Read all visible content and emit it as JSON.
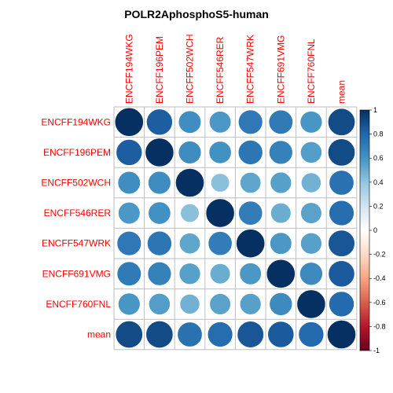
{
  "chart_data": {
    "type": "heatmap",
    "title": "POLR2AphosphoS5-human",
    "labels": [
      "ENCFF194WKG",
      "ENCFF196PEM",
      "ENCFF502WCH",
      "ENCFF546RER",
      "ENCFF547WRK",
      "ENCFF691VMG",
      "ENCFF760FNL",
      "mean"
    ],
    "matrix": [
      [
        1.0,
        0.83,
        0.62,
        0.58,
        0.72,
        0.71,
        0.59,
        0.9
      ],
      [
        0.83,
        1.0,
        0.63,
        0.61,
        0.73,
        0.68,
        0.56,
        0.9
      ],
      [
        0.62,
        0.63,
        1.0,
        0.42,
        0.53,
        0.55,
        0.48,
        0.75
      ],
      [
        0.58,
        0.61,
        0.42,
        1.0,
        0.7,
        0.5,
        0.54,
        0.77
      ],
      [
        0.72,
        0.73,
        0.53,
        0.7,
        1.0,
        0.58,
        0.55,
        0.86
      ],
      [
        0.71,
        0.68,
        0.55,
        0.5,
        0.58,
        1.0,
        0.64,
        0.84
      ],
      [
        0.59,
        0.56,
        0.48,
        0.54,
        0.55,
        0.64,
        1.0,
        0.78
      ],
      [
        0.9,
        0.9,
        0.75,
        0.77,
        0.86,
        0.84,
        0.78,
        1.0
      ]
    ],
    "colorbar": {
      "ticks": [
        "-1",
        "-0.8",
        "-0.6",
        "-0.4",
        "-0.2",
        "0",
        "0.2",
        "0.4",
        "0.6",
        "0.8",
        "1"
      ],
      "range": [
        -1,
        1
      ],
      "colors": [
        "#67001F",
        "#B2182B",
        "#D6604D",
        "#F4A582",
        "#FDDBC7",
        "#FFFFFF",
        "#D1E5F0",
        "#92C5DE",
        "#4393C3",
        "#2166AC",
        "#053061"
      ]
    },
    "label_color": "#ff0000",
    "grid_color": "#bebebe",
    "legend_position": "right"
  }
}
